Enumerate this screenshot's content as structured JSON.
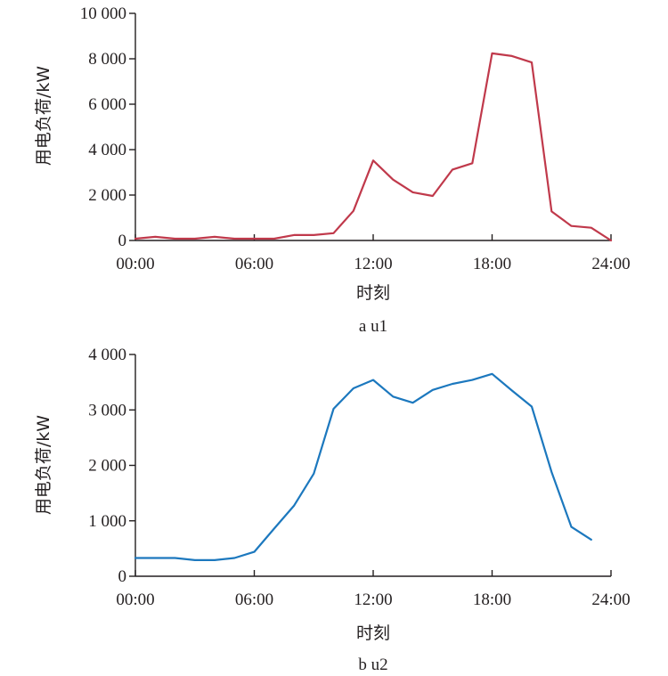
{
  "chart_data": [
    {
      "type": "line",
      "caption": "a u1",
      "xlabel": "时刻",
      "ylabel": "用电负荷/kW",
      "xlim": [
        0,
        24
      ],
      "ylim": [
        0,
        10000
      ],
      "x_tick_labels": [
        "00:00",
        "06:00",
        "12:00",
        "18:00",
        "24:00"
      ],
      "x_ticks": [
        0,
        6,
        12,
        18,
        24
      ],
      "y_tick_labels": [
        "0",
        "2 000",
        "4 000",
        "6 000",
        "8 000",
        "10 000"
      ],
      "y_ticks": [
        0,
        2000,
        4000,
        6000,
        8000,
        10000
      ],
      "color": "#c0394b",
      "series": [
        {
          "x": [
            0,
            1,
            2,
            3,
            4,
            5,
            6,
            7,
            8,
            9,
            10,
            11,
            12,
            13,
            14,
            15,
            16,
            17,
            18,
            19,
            20,
            21,
            22,
            23,
            24
          ],
          "values": [
            80,
            160,
            80,
            80,
            160,
            80,
            80,
            80,
            240,
            240,
            320,
            1300,
            3520,
            2680,
            2120,
            1960,
            3120,
            3400,
            8240,
            8120,
            7840,
            1280,
            640,
            560,
            0
          ]
        }
      ]
    },
    {
      "type": "line",
      "caption": "b u2",
      "xlabel": "时刻",
      "ylabel": "用电负荷/kW",
      "xlim": [
        0,
        24
      ],
      "ylim": [
        0,
        4000
      ],
      "x_tick_labels": [
        "00:00",
        "06:00",
        "12:00",
        "18:00",
        "24:00"
      ],
      "x_ticks": [
        0,
        6,
        12,
        18,
        24
      ],
      "y_tick_labels": [
        "0",
        "1 000",
        "2 000",
        "3 000",
        "4 000"
      ],
      "y_ticks": [
        0,
        1000,
        2000,
        3000,
        4000
      ],
      "color": "#1c78be",
      "series": [
        {
          "x": [
            0,
            1,
            2,
            3,
            4,
            5,
            6,
            7,
            8,
            9,
            10,
            11,
            12,
            13,
            14,
            15,
            16,
            17,
            18,
            19,
            20,
            21,
            22,
            23
          ],
          "values": [
            330,
            330,
            330,
            290,
            290,
            330,
            440,
            860,
            1270,
            1850,
            3020,
            3390,
            3540,
            3240,
            3130,
            3360,
            3470,
            3540,
            3650,
            3350,
            3060,
            1880,
            890,
            660
          ]
        }
      ]
    }
  ]
}
